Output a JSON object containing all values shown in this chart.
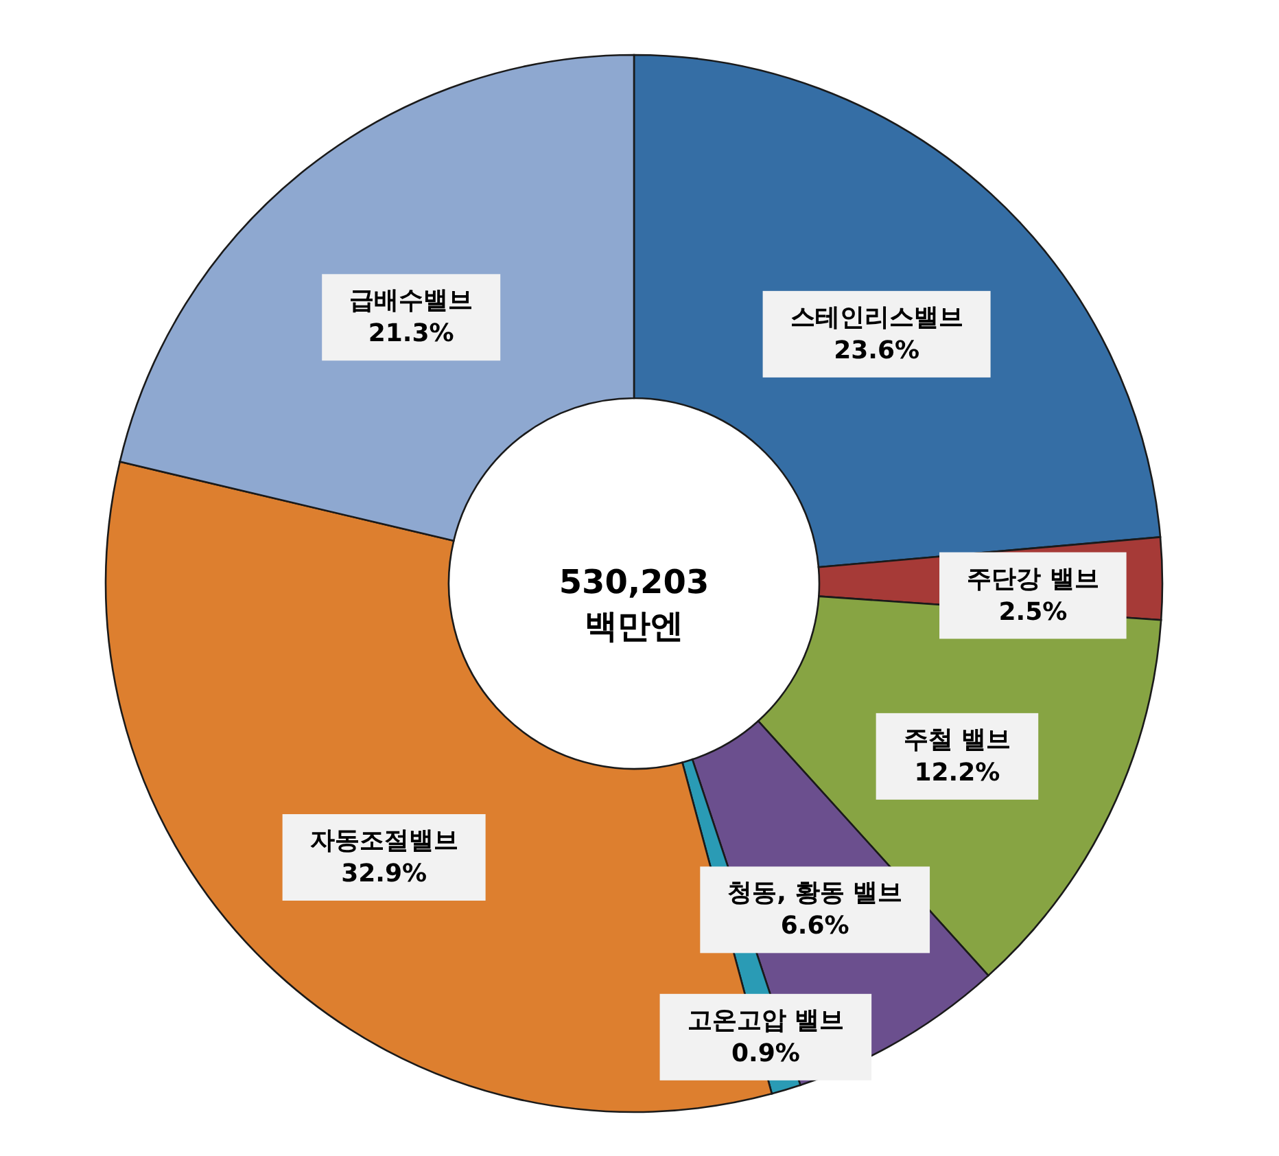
{
  "chart_data": {
    "type": "donut",
    "categories": [
      "스테인리스밸브",
      "주단강 밸브",
      "주철 밸브",
      "청동, 황동 밸브",
      "고온고압 밸브",
      "자동조절밸브",
      "급배수밸브"
    ],
    "values": [
      23.6,
      2.5,
      12.2,
      6.6,
      0.9,
      32.9,
      21.3
    ],
    "colors": [
      "#356ea5",
      "#a63a37",
      "#87a443",
      "#6b4f8e",
      "#2a9bb5",
      "#dd7f2f",
      "#8ea8d0"
    ],
    "value_labels": [
      "23.6%",
      "2.5%",
      "12.2%",
      "6.6%",
      "0.9%",
      "32.9%",
      "21.3%"
    ],
    "annotations": [
      "530,203",
      "백만엔"
    ]
  }
}
